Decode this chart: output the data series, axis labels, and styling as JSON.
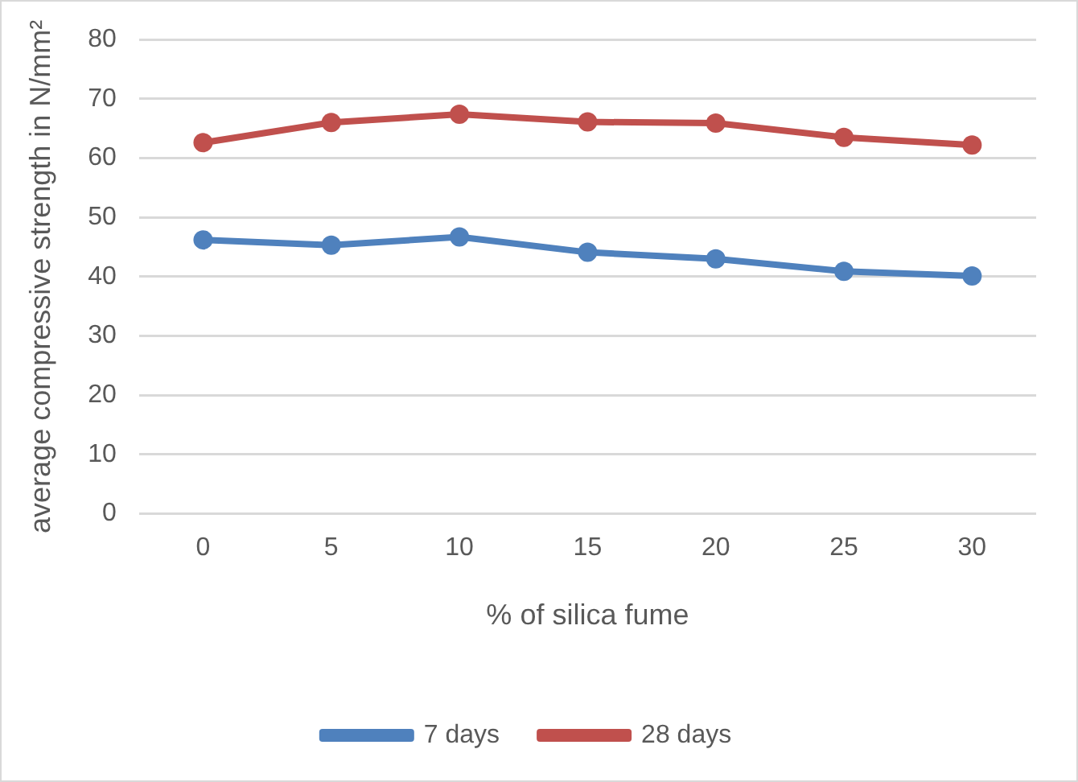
{
  "chart_data": {
    "type": "line",
    "xlabel": "% of silica fume",
    "ylabel": "average compressive strength in N/mm²",
    "categories": [
      "0",
      "5",
      "10",
      "15",
      "20",
      "25",
      "30"
    ],
    "series": [
      {
        "name": "7 days",
        "color": "#4f81bd",
        "values": [
          46.2,
          45.3,
          46.7,
          44.1,
          43.0,
          40.9,
          40.1
        ]
      },
      {
        "name": "28 days",
        "color": "#c0504d",
        "values": [
          62.6,
          66.0,
          67.4,
          66.1,
          65.9,
          63.5,
          62.2
        ]
      }
    ],
    "ylim": [
      0,
      80
    ],
    "yticks": [
      0,
      10,
      20,
      30,
      40,
      50,
      60,
      70,
      80
    ],
    "grid": "y",
    "legend": "bottom",
    "marker": "circle",
    "line_style": "solid"
  }
}
